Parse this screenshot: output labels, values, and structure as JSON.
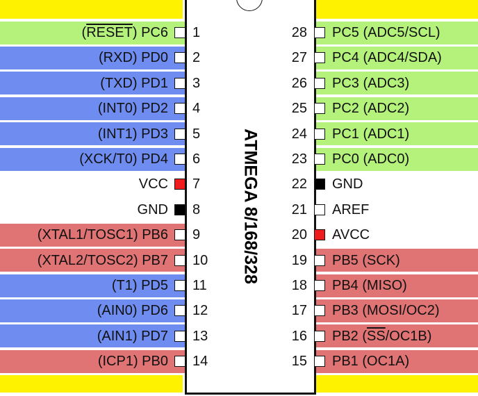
{
  "chip_name": "ATMEGA 8/168/328",
  "colors": {
    "green": "#b4f27c",
    "blue": "#6f8cf0",
    "red": "#e07373",
    "white": "#ffffff",
    "yellow": "#fff200",
    "pin_red": "#ee1c1c",
    "pin_black": "#000000"
  },
  "left_pins": [
    {
      "num": "1",
      "pre": "(",
      "over": "RESET",
      "post": ") PC6",
      "band": "green",
      "pin": "white"
    },
    {
      "num": "2",
      "pre": "(RXD) PD0",
      "over": "",
      "post": "",
      "band": "blue",
      "pin": "white"
    },
    {
      "num": "3",
      "pre": "(TXD) PD1",
      "over": "",
      "post": "",
      "band": "blue",
      "pin": "white"
    },
    {
      "num": "4",
      "pre": "(INT0) PD2",
      "over": "",
      "post": "",
      "band": "blue",
      "pin": "white"
    },
    {
      "num": "5",
      "pre": "(INT1) PD3",
      "over": "",
      "post": "",
      "band": "blue",
      "pin": "white"
    },
    {
      "num": "6",
      "pre": "(XCK/T0) PD4",
      "over": "",
      "post": "",
      "band": "blue",
      "pin": "white"
    },
    {
      "num": "7",
      "pre": "VCC",
      "over": "",
      "post": "",
      "band": "white",
      "pin": "red"
    },
    {
      "num": "8",
      "pre": "GND",
      "over": "",
      "post": "",
      "band": "white",
      "pin": "black"
    },
    {
      "num": "9",
      "pre": "(XTAL1/TOSC1) PB6",
      "over": "",
      "post": "",
      "band": "red",
      "pin": "white"
    },
    {
      "num": "10",
      "pre": "(XTAL2/TOSC2) PB7",
      "over": "",
      "post": "",
      "band": "red",
      "pin": "white"
    },
    {
      "num": "11",
      "pre": "(T1) PD5",
      "over": "",
      "post": "",
      "band": "blue",
      "pin": "white"
    },
    {
      "num": "12",
      "pre": "(AIN0) PD6",
      "over": "",
      "post": "",
      "band": "blue",
      "pin": "white"
    },
    {
      "num": "13",
      "pre": "(AIN1) PD7",
      "over": "",
      "post": "",
      "band": "blue",
      "pin": "white"
    },
    {
      "num": "14",
      "pre": "(ICP1) PB0",
      "over": "",
      "post": "",
      "band": "red",
      "pin": "white"
    }
  ],
  "right_pins": [
    {
      "num": "28",
      "pre": "PC5 (ADC5/SCL)",
      "over": "",
      "post": "",
      "band": "green",
      "pin": "white"
    },
    {
      "num": "27",
      "pre": "PC4 (ADC4/SDA)",
      "over": "",
      "post": "",
      "band": "green",
      "pin": "white"
    },
    {
      "num": "26",
      "pre": "PC3 (ADC3)",
      "over": "",
      "post": "",
      "band": "green",
      "pin": "white"
    },
    {
      "num": "25",
      "pre": "PC2 (ADC2)",
      "over": "",
      "post": "",
      "band": "green",
      "pin": "white"
    },
    {
      "num": "24",
      "pre": "PC1 (ADC1)",
      "over": "",
      "post": "",
      "band": "green",
      "pin": "white"
    },
    {
      "num": "23",
      "pre": "PC0 (ADC0)",
      "over": "",
      "post": "",
      "band": "green",
      "pin": "white"
    },
    {
      "num": "22",
      "pre": "GND",
      "over": "",
      "post": "",
      "band": "white",
      "pin": "black"
    },
    {
      "num": "21",
      "pre": "AREF",
      "over": "",
      "post": "",
      "band": "white",
      "pin": "white"
    },
    {
      "num": "20",
      "pre": "AVCC",
      "over": "",
      "post": "",
      "band": "white",
      "pin": "red"
    },
    {
      "num": "19",
      "pre": "PB5 (SCK)",
      "over": "",
      "post": "",
      "band": "red",
      "pin": "white"
    },
    {
      "num": "18",
      "pre": "PB4 (MISO)",
      "over": "",
      "post": "",
      "band": "red",
      "pin": "white"
    },
    {
      "num": "17",
      "pre": "PB3 (MOSI/OC2)",
      "over": "",
      "post": "",
      "band": "red",
      "pin": "white"
    },
    {
      "num": "16",
      "pre": "PB2 (",
      "over": "SS",
      "post": "/OC1B)",
      "band": "red",
      "pin": "white"
    },
    {
      "num": "15",
      "pre": "PB1 (OC1A)",
      "over": "",
      "post": "",
      "band": "red",
      "pin": "white"
    }
  ]
}
